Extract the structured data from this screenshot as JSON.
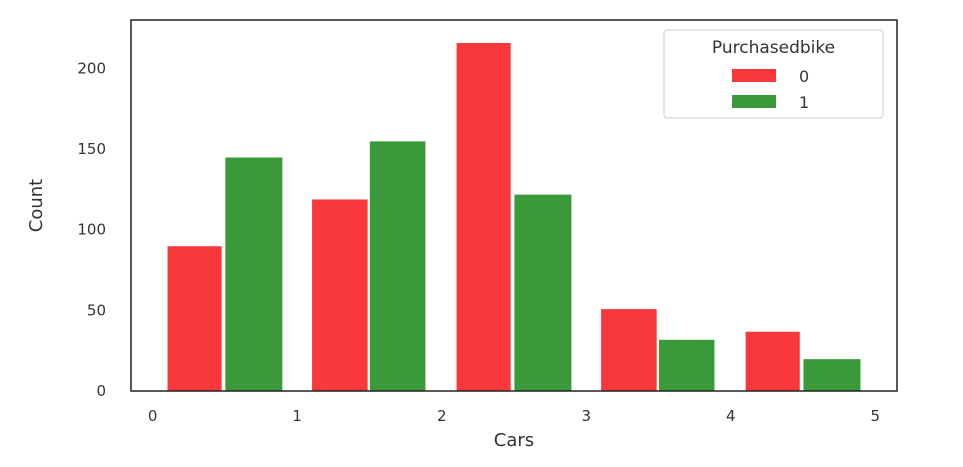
{
  "chart_data": {
    "type": "bar",
    "title": "",
    "xlabel": "Cars",
    "ylabel": "Count",
    "xlim": [
      -0.15,
      5.15
    ],
    "ylim": [
      0,
      230
    ],
    "xticks": [
      0,
      1,
      2,
      3,
      4,
      5
    ],
    "yticks": [
      0,
      50,
      100,
      150,
      200
    ],
    "grid": false,
    "legend": {
      "title": "Purchasedbike",
      "placement": "top-right"
    },
    "series": [
      {
        "name": "0",
        "color": "#f8383a",
        "bars": [
          {
            "x0": 0.1,
            "x1": 0.48,
            "value": 90
          },
          {
            "x0": 1.1,
            "x1": 1.49,
            "value": 119
          },
          {
            "x0": 2.1,
            "x1": 2.48,
            "value": 216
          },
          {
            "x0": 3.1,
            "x1": 3.49,
            "value": 51
          },
          {
            "x0": 4.1,
            "x1": 4.48,
            "value": 37
          }
        ]
      },
      {
        "name": "1",
        "color": "#3a9a3a",
        "bars": [
          {
            "x0": 0.5,
            "x1": 0.9,
            "value": 145
          },
          {
            "x0": 1.5,
            "x1": 1.89,
            "value": 155
          },
          {
            "x0": 2.5,
            "x1": 2.9,
            "value": 122
          },
          {
            "x0": 3.5,
            "x1": 3.89,
            "value": 32
          },
          {
            "x0": 4.5,
            "x1": 4.9,
            "value": 20
          }
        ]
      }
    ]
  }
}
